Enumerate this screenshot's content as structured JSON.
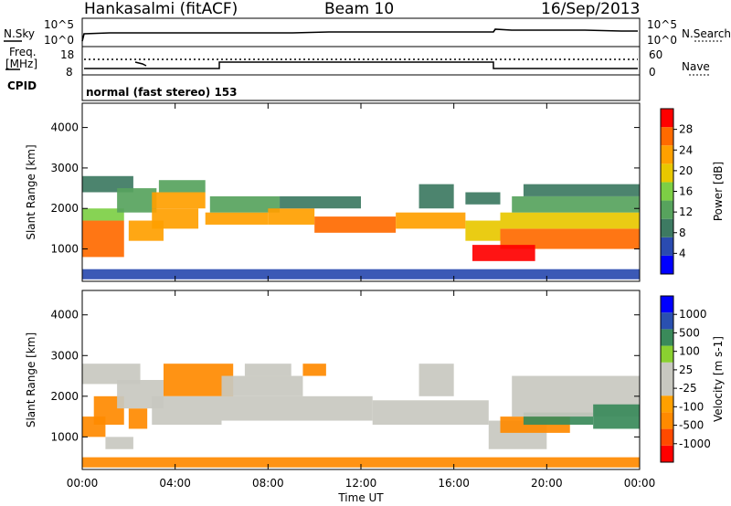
{
  "header": {
    "station": "Hankasalmi (fitACF)",
    "beam": "Beam 10",
    "date": "16/Sep/2013"
  },
  "noise_panel": {
    "left_label": "N.Sky",
    "right_label": "N.Search",
    "left_ticks": [
      "10^5",
      "10^0"
    ],
    "right_ticks": [
      "10^5",
      "10^0"
    ]
  },
  "freq_panel": {
    "left_label_1": "Freq.",
    "left_label_2": "[MHz]",
    "right_label": "Nave",
    "left_ticks": [
      "18",
      "8"
    ],
    "right_ticks": [
      "60",
      "0"
    ]
  },
  "cpid": {
    "label": "CPID",
    "text": "normal (fast stereo) 153"
  },
  "colors": {
    "power_scale": [
      "#0000ff",
      "#2a4bb0",
      "#3d7a62",
      "#57a35d",
      "#7dcf45",
      "#e8c800",
      "#ffa000",
      "#ff6a00",
      "#ff0000"
    ],
    "velocity_scale": [
      "#ff0000",
      "#ff4a00",
      "#ff8a00",
      "#ffa000",
      "#c8c8c0",
      "#c8c8c0",
      "#8ad030",
      "#3a8a5a",
      "#2a50b0",
      "#0000ff"
    ],
    "ground_scatter": "#c8c8c0"
  },
  "chart_data": [
    {
      "type": "heatmap",
      "name": "Power",
      "ylabel": "Slant Range [km]",
      "yticks": [
        "1000",
        "2000",
        "3000",
        "4000"
      ],
      "ylim": [
        200,
        4600
      ],
      "colorbar": {
        "label": "Power [dB]",
        "ticks": [
          "4",
          "8",
          "12",
          "16",
          "20",
          "24",
          "28"
        ],
        "range": [
          0,
          32
        ]
      },
      "bands": [
        {
          "t": [
            0.0,
            1.8
          ],
          "range": [
            800,
            1700
          ],
          "value": 26
        },
        {
          "t": [
            0.0,
            1.8
          ],
          "range": [
            1700,
            2000
          ],
          "value": 16
        },
        {
          "t": [
            0.0,
            2.2
          ],
          "range": [
            2400,
            2800
          ],
          "value": 8
        },
        {
          "t": [
            1.5,
            3.2
          ],
          "range": [
            1900,
            2500
          ],
          "value": 12
        },
        {
          "t": [
            2.0,
            3.5
          ],
          "range": [
            1200,
            1700
          ],
          "value": 24
        },
        {
          "t": [
            3.0,
            5.0
          ],
          "range": [
            1500,
            2000
          ],
          "value": 22
        },
        {
          "t": [
            3.0,
            5.3
          ],
          "range": [
            2000,
            2400
          ],
          "value": 22
        },
        {
          "t": [
            3.3,
            5.3
          ],
          "range": [
            2400,
            2700
          ],
          "value": 14
        },
        {
          "t": [
            5.3,
            8.0
          ],
          "range": [
            1600,
            1900
          ],
          "value": 24
        },
        {
          "t": [
            5.5,
            8.5
          ],
          "range": [
            1900,
            2300
          ],
          "value": 12
        },
        {
          "t": [
            8.0,
            10.0
          ],
          "range": [
            1600,
            2000
          ],
          "value": 22
        },
        {
          "t": [
            8.5,
            12.0
          ],
          "range": [
            2000,
            2300
          ],
          "value": 10
        },
        {
          "t": [
            10.0,
            13.5
          ],
          "range": [
            1400,
            1800
          ],
          "value": 25
        },
        {
          "t": [
            13.5,
            16.5
          ],
          "range": [
            1500,
            1900
          ],
          "value": 22
        },
        {
          "t": [
            14.5,
            16.0
          ],
          "range": [
            2000,
            2600
          ],
          "value": 8
        },
        {
          "t": [
            16.5,
            18.0
          ],
          "range": [
            1200,
            1700
          ],
          "value": 18
        },
        {
          "t": [
            16.5,
            18.0
          ],
          "range": [
            2100,
            2400
          ],
          "value": 10
        },
        {
          "t": [
            18.0,
            24.0
          ],
          "range": [
            1000,
            1500
          ],
          "value": 27
        },
        {
          "t": [
            16.8,
            19.5
          ],
          "range": [
            700,
            1100
          ],
          "value": 29
        },
        {
          "t": [
            18.0,
            24.0
          ],
          "range": [
            1500,
            1900
          ],
          "value": 18
        },
        {
          "t": [
            18.5,
            24.0
          ],
          "range": [
            1900,
            2300
          ],
          "value": 12
        },
        {
          "t": [
            19.0,
            24.0
          ],
          "range": [
            2300,
            2600
          ],
          "value": 8
        },
        {
          "t": [
            0.0,
            24.0
          ],
          "range": [
            250,
            500
          ],
          "value": 6
        }
      ]
    },
    {
      "type": "heatmap",
      "name": "Velocity",
      "ylabel": "Slant Range [km]",
      "xlabel": "Time UT",
      "xticks": [
        "00:00",
        "04:00",
        "08:00",
        "12:00",
        "16:00",
        "20:00",
        "00:00"
      ],
      "xlim": [
        0,
        24
      ],
      "yticks": [
        "1000",
        "2000",
        "3000",
        "4000"
      ],
      "ylim": [
        200,
        4600
      ],
      "colorbar": {
        "label": "Velocity [m s-1]",
        "ticks": [
          "1000",
          "500",
          "100",
          "25",
          "-25",
          "-100",
          "-500",
          "-1000"
        ]
      },
      "bands": [
        {
          "t": [
            0.0,
            1.0
          ],
          "range": [
            1000,
            1500
          ],
          "value": -300
        },
        {
          "t": [
            0.5,
            1.8
          ],
          "range": [
            1300,
            2000
          ],
          "value": -150
        },
        {
          "t": [
            0.0,
            2.5
          ],
          "range": [
            2300,
            2800
          ],
          "value": 0
        },
        {
          "t": [
            1.0,
            2.2
          ],
          "range": [
            700,
            1000
          ],
          "value": 0
        },
        {
          "t": [
            2.0,
            2.8
          ],
          "range": [
            1200,
            1700
          ],
          "value": -400
        },
        {
          "t": [
            1.5,
            3.5
          ],
          "range": [
            1700,
            2400
          ],
          "value": 0
        },
        {
          "t": [
            3.5,
            6.5
          ],
          "range": [
            2000,
            2800
          ],
          "value": -200
        },
        {
          "t": [
            3.0,
            6.0
          ],
          "range": [
            1300,
            2000
          ],
          "value": 0
        },
        {
          "t": [
            6.0,
            9.5
          ],
          "range": [
            2000,
            2500
          ],
          "value": 0
        },
        {
          "t": [
            6.0,
            12.5
          ],
          "range": [
            1400,
            2000
          ],
          "value": 0
        },
        {
          "t": [
            9.5,
            10.5
          ],
          "range": [
            2500,
            2800
          ],
          "value": -300
        },
        {
          "t": [
            7.0,
            9.0
          ],
          "range": [
            2500,
            2800
          ],
          "value": 10
        },
        {
          "t": [
            12.5,
            17.5
          ],
          "range": [
            1300,
            1900
          ],
          "value": 0
        },
        {
          "t": [
            14.5,
            16.0
          ],
          "range": [
            2000,
            2800
          ],
          "value": 0
        },
        {
          "t": [
            17.5,
            20.0
          ],
          "range": [
            700,
            1400
          ],
          "value": 0
        },
        {
          "t": [
            18.0,
            21.0
          ],
          "range": [
            1100,
            1500
          ],
          "value": -300
        },
        {
          "t": [
            19.0,
            22.0
          ],
          "range": [
            1300,
            1600
          ],
          "value": 150
        },
        {
          "t": [
            18.5,
            24.0
          ],
          "range": [
            1500,
            2500
          ],
          "value": 0
        },
        {
          "t": [
            22.0,
            24.0
          ],
          "range": [
            1200,
            1800
          ],
          "value": 400
        },
        {
          "t": [
            0.0,
            24.0
          ],
          "range": [
            250,
            500
          ],
          "value": -100
        }
      ]
    }
  ]
}
